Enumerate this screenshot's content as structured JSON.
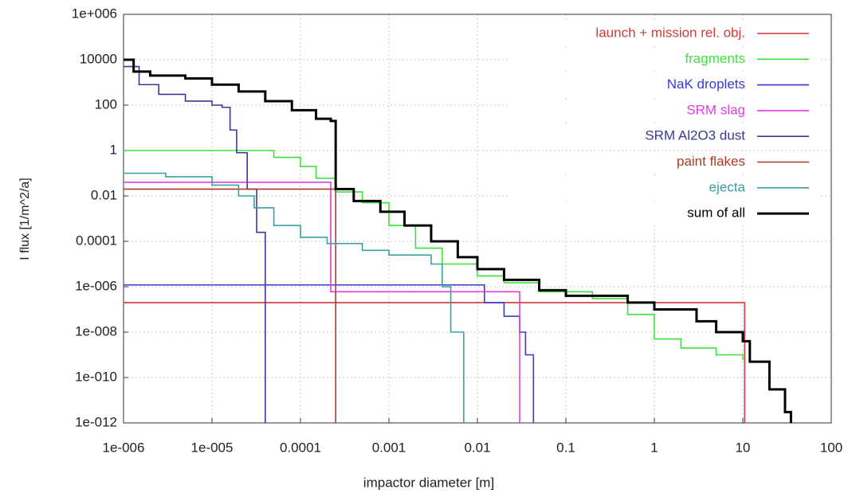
{
  "chart_data": {
    "type": "step",
    "xlabel": "impactor diameter  [m]",
    "ylabel": "I flux [1/m^2/a]",
    "xscale": "log",
    "yscale": "log",
    "grid": true,
    "legend": "upper right",
    "xlim": [
      1e-06,
      100
    ],
    "ylim": [
      1e-12,
      1000000
    ],
    "xticks": [
      {
        "value": 1e-06,
        "label": "1e-006"
      },
      {
        "value": 1e-05,
        "label": "1e-005"
      },
      0.0001,
      0.001,
      0.01,
      0.1,
      1,
      10,
      100
    ],
    "yticks": [
      {
        "value": 1e-12,
        "label": "1e-012"
      },
      {
        "value": 1e-10,
        "label": "1e-010"
      },
      {
        "value": 1e-08,
        "label": "1e-008"
      },
      {
        "value": 1e-06,
        "label": "1e-006"
      },
      0.0001,
      0.01,
      1,
      100,
      10000,
      {
        "value": 1000000,
        "label": "1e+006"
      }
    ],
    "series": [
      {
        "name": "launch + mission rel. obj.",
        "color": "#d03a3a",
        "x": [
          1e-06,
          10.5
        ],
        "values": [
          2e-07,
          1e-12
        ]
      },
      {
        "name": "fragments",
        "color": "#3ee03e",
        "x": [
          1e-06,
          5e-05,
          0.0001,
          0.00015,
          0.00025,
          0.0005,
          0.001,
          0.002,
          0.004,
          0.01,
          0.02,
          0.05,
          0.2,
          0.5,
          1,
          2,
          5,
          10
        ],
        "values": [
          1,
          0.5,
          0.2,
          0.06,
          0.015,
          0.005,
          0.0005,
          5e-05,
          1e-05,
          3e-06,
          1.5e-06,
          6e-07,
          3e-07,
          6e-08,
          5e-09,
          2e-09,
          1e-09,
          6e-10
        ]
      },
      {
        "name": "NaK droplets",
        "color": "#3a3ad0",
        "x": [
          1e-06,
          0.012,
          0.02,
          0.03,
          0.035,
          0.043
        ],
        "values": [
          1.2e-06,
          2e-07,
          5e-08,
          1e-08,
          1e-09,
          1e-12
        ]
      },
      {
        "name": "SRM slag",
        "color": "#e03ee0",
        "x": [
          1e-06,
          0.00022,
          0.03
        ],
        "values": [
          0.04,
          6e-07,
          1e-12
        ]
      },
      {
        "name": "SRM Al2O3 dust",
        "color": "#3a3a90",
        "x": [
          1e-06,
          1.5e-06,
          2.5e-06,
          5e-06,
          1e-05,
          1.3e-05,
          1.6e-05,
          1.9e-05,
          2.5e-05,
          3.2e-05,
          4e-05
        ],
        "values": [
          5000,
          800,
          300,
          150,
          100,
          80,
          8,
          0.8,
          0.02,
          0.00025,
          1e-12
        ]
      },
      {
        "name": "paint flakes",
        "color": "#b03a2a",
        "x": [
          1e-06,
          0.00025
        ],
        "values": [
          0.02,
          1e-12
        ]
      },
      {
        "name": "ejecta",
        "color": "#3aa0a0",
        "x": [
          1e-06,
          3e-06,
          1e-05,
          2e-05,
          3e-05,
          5e-05,
          0.0001,
          0.0002,
          0.0005,
          0.001,
          0.003,
          0.004,
          0.005,
          0.007
        ],
        "values": [
          0.1,
          0.07,
          0.03,
          0.01,
          0.003,
          0.0005,
          0.00015,
          8e-05,
          4e-05,
          2.5e-05,
          1e-05,
          1e-06,
          1e-08,
          1e-12
        ]
      },
      {
        "name": "sum of all",
        "color": "#000000",
        "x": [
          1e-06,
          1.3e-06,
          2e-06,
          5e-06,
          1e-05,
          2e-05,
          4e-05,
          8e-05,
          0.00015,
          0.00022,
          0.00025,
          0.0004,
          0.0008,
          0.0015,
          0.003,
          0.006,
          0.01,
          0.02,
          0.05,
          0.1,
          0.5,
          1,
          3,
          5,
          10,
          12,
          20,
          30,
          35
        ],
        "values": [
          10000,
          3000,
          2000,
          1500,
          800,
          400,
          150,
          60,
          25,
          20,
          0.02,
          0.006,
          0.002,
          0.0005,
          0.0001,
          2e-05,
          6e-06,
          2e-06,
          7e-07,
          4e-07,
          2e-07,
          1e-07,
          3e-08,
          1e-08,
          4e-09,
          5e-10,
          3e-11,
          3e-12,
          1e-12
        ]
      }
    ]
  }
}
